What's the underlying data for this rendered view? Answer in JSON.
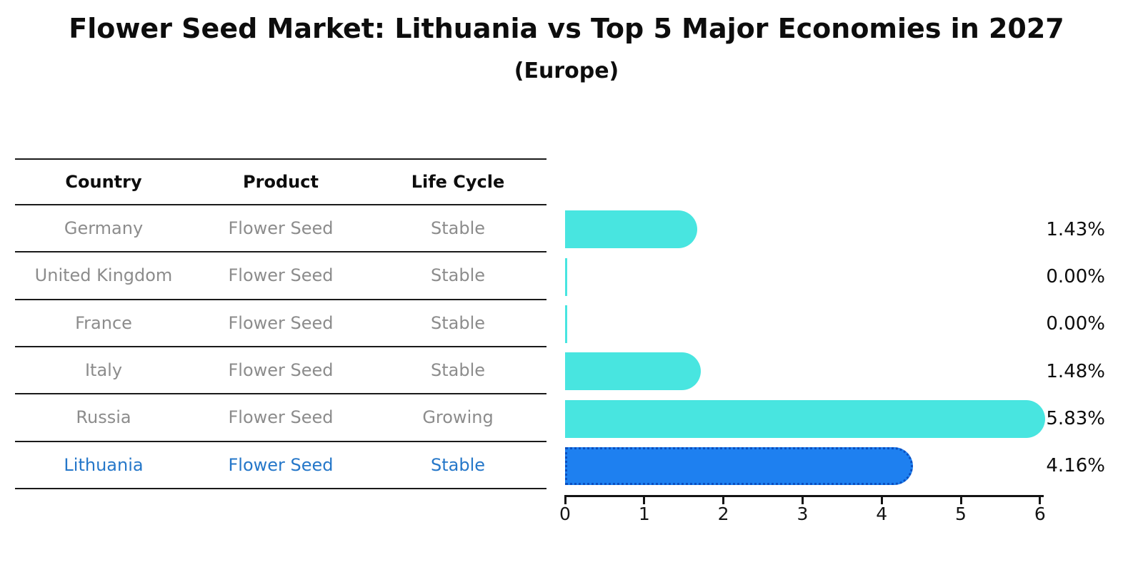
{
  "title": "Flower Seed Market: Lithuania vs Top 5 Major Economies in 2027",
  "subtitle": "(Europe)",
  "table": {
    "headers": [
      "Country",
      "Product",
      "Life Cycle"
    ],
    "rows": [
      {
        "country": "Germany",
        "product": "Flower Seed",
        "life_cycle": "Stable",
        "highlight": false
      },
      {
        "country": "United Kingdom",
        "product": "Flower Seed",
        "life_cycle": "Stable",
        "highlight": false
      },
      {
        "country": "France",
        "product": "Flower Seed",
        "life_cycle": "Stable",
        "highlight": false
      },
      {
        "country": "Italy",
        "product": "Flower Seed",
        "life_cycle": "Stable",
        "highlight": false
      },
      {
        "country": "Russia",
        "product": "Flower Seed",
        "life_cycle": "Growing",
        "highlight": false
      },
      {
        "country": "Lithuania",
        "product": "Flower Seed",
        "life_cycle": "Stable",
        "highlight": true
      }
    ]
  },
  "chart_data": {
    "type": "bar",
    "orientation": "horizontal",
    "title": "Flower Seed Market: Lithuania vs Top 5 Major Economies in 2027",
    "subtitle": "(Europe)",
    "categories": [
      "Germany",
      "United Kingdom",
      "France",
      "Italy",
      "Russia",
      "Lithuania"
    ],
    "values": [
      1.43,
      0.0,
      0.0,
      1.48,
      5.83,
      4.16
    ],
    "value_labels": [
      "1.43%",
      "0.00%",
      "0.00%",
      "1.48%",
      "5.83%",
      "4.16%"
    ],
    "x_ticks": [
      0,
      1,
      2,
      3,
      4,
      5,
      6
    ],
    "xlim": [
      0,
      6
    ],
    "grid": false,
    "legend": "none",
    "highlight_index": 5
  },
  "colors": {
    "bar_cyan": "#48E5E0",
    "bar_blue": "#1E80F0",
    "bar_blue_border": "#0A4FC0",
    "highlight_text": "#2577C9",
    "text_muted": "#8c8c8c",
    "text_dark": "#0d0d0d"
  }
}
